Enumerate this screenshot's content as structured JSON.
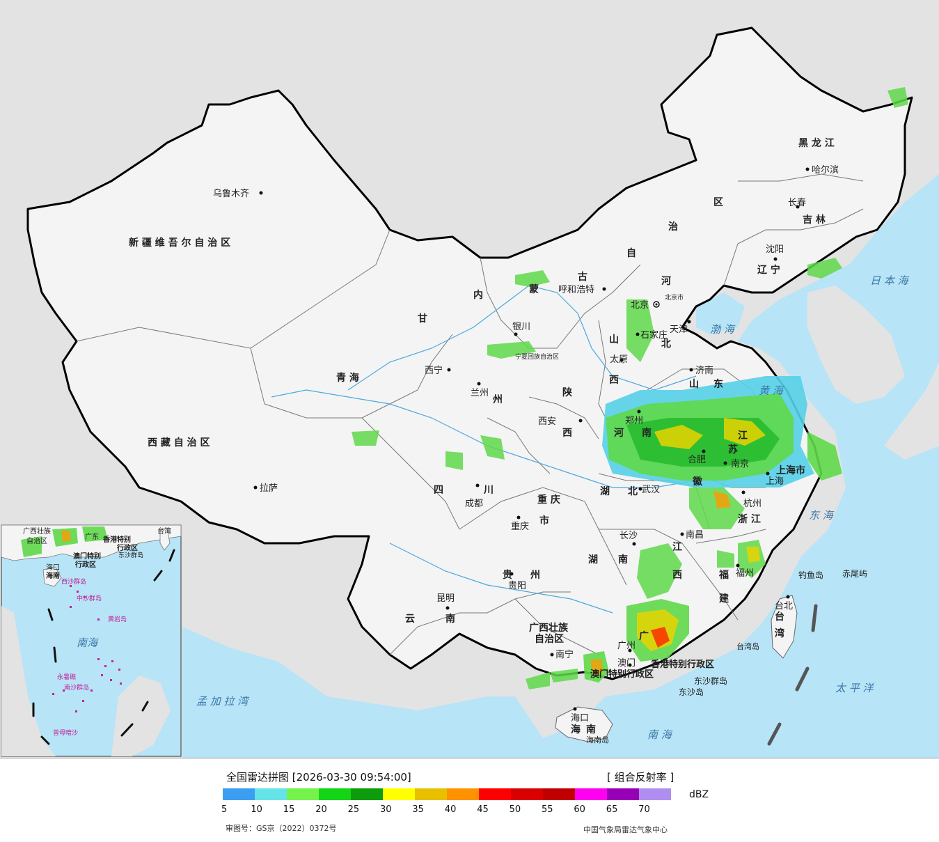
{
  "legend": {
    "title": "全国雷达拼图 [2026-03-30 09:54:00]",
    "product": "[ 组合反射率 ]",
    "unit": "dBZ",
    "ticks": [
      "5",
      "10",
      "15",
      "20",
      "25",
      "30",
      "35",
      "40",
      "45",
      "50",
      "55",
      "60",
      "65",
      "70"
    ],
    "colors": [
      "#3c9ef0",
      "#65e4e8",
      "#76f24c",
      "#14d416",
      "#0c9c0c",
      "#ffff00",
      "#e8c000",
      "#ff9200",
      "#ff0000",
      "#d80000",
      "#c00000",
      "#ff00f0",
      "#9800b8",
      "#b08ef0"
    ],
    "approval": "审图号：GS京（2022）0372号",
    "source": "中国气象局雷达气象中心"
  },
  "map": {
    "provinces": {
      "xinjiang": "新 疆 维 吾 尔 自 治 区",
      "xizang": "西 藏 自 治 区",
      "qinghai": "青      海",
      "gansu": "甘",
      "neimenggu": [
        "内",
        "蒙",
        "古",
        "自",
        "治",
        "区"
      ],
      "heilongjiang": "黑 龙 江",
      "jilin": "吉 林",
      "liaoning": "辽 宁",
      "hebei": [
        "河",
        "北"
      ],
      "shanxi": [
        "山",
        "西"
      ],
      "shaanxi": [
        "陕",
        "西"
      ],
      "shandong": [
        "山",
        "东"
      ],
      "henan": [
        "河",
        "南"
      ],
      "jiangsu": [
        "江",
        "苏"
      ],
      "anhui": "徽",
      "hubei": [
        "湖",
        "北"
      ],
      "hunan": [
        "湖",
        "南"
      ],
      "jiangxi": [
        "江",
        "西"
      ],
      "zhejiang": "浙 江",
      "fujian": [
        "福",
        "建"
      ],
      "sichuan": [
        "四",
        "川"
      ],
      "chongqing": [
        "重 庆",
        "市"
      ],
      "guizhou": [
        "贵",
        "州"
      ],
      "yunnan": [
        "云",
        "南"
      ],
      "guangxi": [
        "广西壮族",
        "自治区"
      ],
      "guangdong": "广",
      "hainan": [
        "海",
        "南"
      ],
      "taiwan": [
        "台",
        "湾"
      ],
      "ningxia": "宁夏回族自治区",
      "shanghai": "上海市",
      "tianjin": "天津",
      "lanzhou_city": "州"
    },
    "cities": {
      "urumqi": "乌鲁木齐",
      "lhasa": "拉萨",
      "xining": "西宁",
      "lanzhou": "兰州",
      "yinchuan": "银川",
      "hohhot": "呼和浩特",
      "beijing": "北京",
      "tianjin": "天津",
      "shijiazhuang": "石家庄",
      "taiyuan": "太原",
      "jinan": "济南",
      "xian": "西安",
      "zhengzhou": "郑州",
      "hefei": "合肥",
      "nanjing": "南京",
      "shanghai": "上海",
      "hangzhou": "杭州",
      "wuhan": "武汉",
      "changsha": "长沙",
      "nanchang": "南昌",
      "fuzhou": "福州",
      "taipei": "台北",
      "chengdu": "成都",
      "chongqing": "重庆",
      "guiyang": "贵阳",
      "kunming": "昆明",
      "nanning": "南宁",
      "guangzhou": "广州",
      "macau": "澳门",
      "haikou": "海口",
      "shenyang": "沈阳",
      "changchun": "长春",
      "harbin": "哈尔滨",
      "beijing_small": "北京市"
    },
    "special": {
      "hongkong": "香港特别行政区",
      "macau": "澳门特别行政区",
      "dongsha": "东沙群岛",
      "dongsha_island": "东沙岛",
      "diaoyu": "钓鱼岛",
      "chiwei": "赤尾屿",
      "taiwan_island": "台湾岛",
      "hainan_island": "海南岛"
    },
    "seas": {
      "japan": "日 本 海",
      "bohai": "渤 海",
      "huanghai": "黄 海",
      "donghai": "东 海",
      "taipingyang": "太 平 洋",
      "nanhai": "南 海",
      "bengal": "孟 加 拉 湾"
    },
    "inset": {
      "labels": [
        "广西壮族",
        "自治区",
        "广东",
        "台湾",
        "香港特别",
        "行政区",
        "澳门特别",
        "行政区",
        "东沙群岛",
        "海南",
        "南海",
        "中沙群岛",
        "黄岩岛",
        "南沙群岛",
        "曾母暗沙",
        "永暑礁",
        "海口",
        "西沙群岛"
      ]
    }
  }
}
